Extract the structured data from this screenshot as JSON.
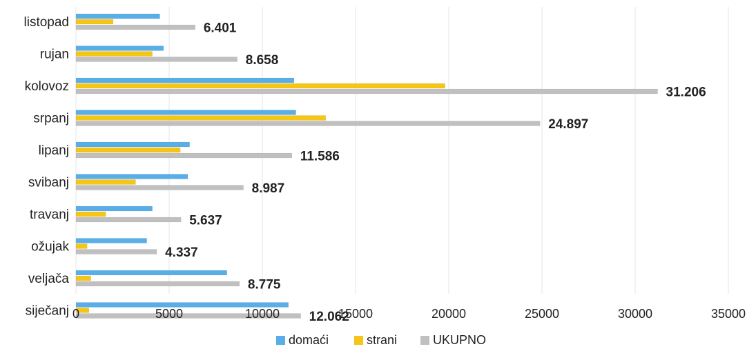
{
  "chart_data": {
    "type": "bar",
    "orientation": "horizontal",
    "categories": [
      "listopad",
      "rujan",
      "kolovoz",
      "srpanj",
      "lipanj",
      "svibanj",
      "travanj",
      "ožujak",
      "veljača",
      "siječanj"
    ],
    "series": [
      {
        "name": "domaći",
        "color": "#5aaee8",
        "values": [
          4500,
          4700,
          11700,
          11800,
          6100,
          6000,
          4100,
          3800,
          8100,
          11400
        ]
      },
      {
        "name": "strani",
        "color": "#f5c518",
        "values": [
          2000,
          4100,
          19800,
          13400,
          5600,
          3200,
          1600,
          600,
          800,
          700
        ]
      },
      {
        "name": "UKUPNO",
        "color": "#c0c0c0",
        "values": [
          6401,
          8658,
          31206,
          24897,
          11586,
          8987,
          5637,
          4337,
          8775,
          12062
        ]
      }
    ],
    "data_labels": [
      "6.401",
      "8.658",
      "31.206",
      "24.897",
      "11.586",
      "8.987",
      "5.637",
      "4.337",
      "8.775",
      "12.062"
    ],
    "xlim": [
      0,
      35000
    ],
    "xticks": [
      "0",
      "5000",
      "10000",
      "15000",
      "20000",
      "25000",
      "30000",
      "35000"
    ],
    "grid": true,
    "legend_position": "bottom"
  }
}
